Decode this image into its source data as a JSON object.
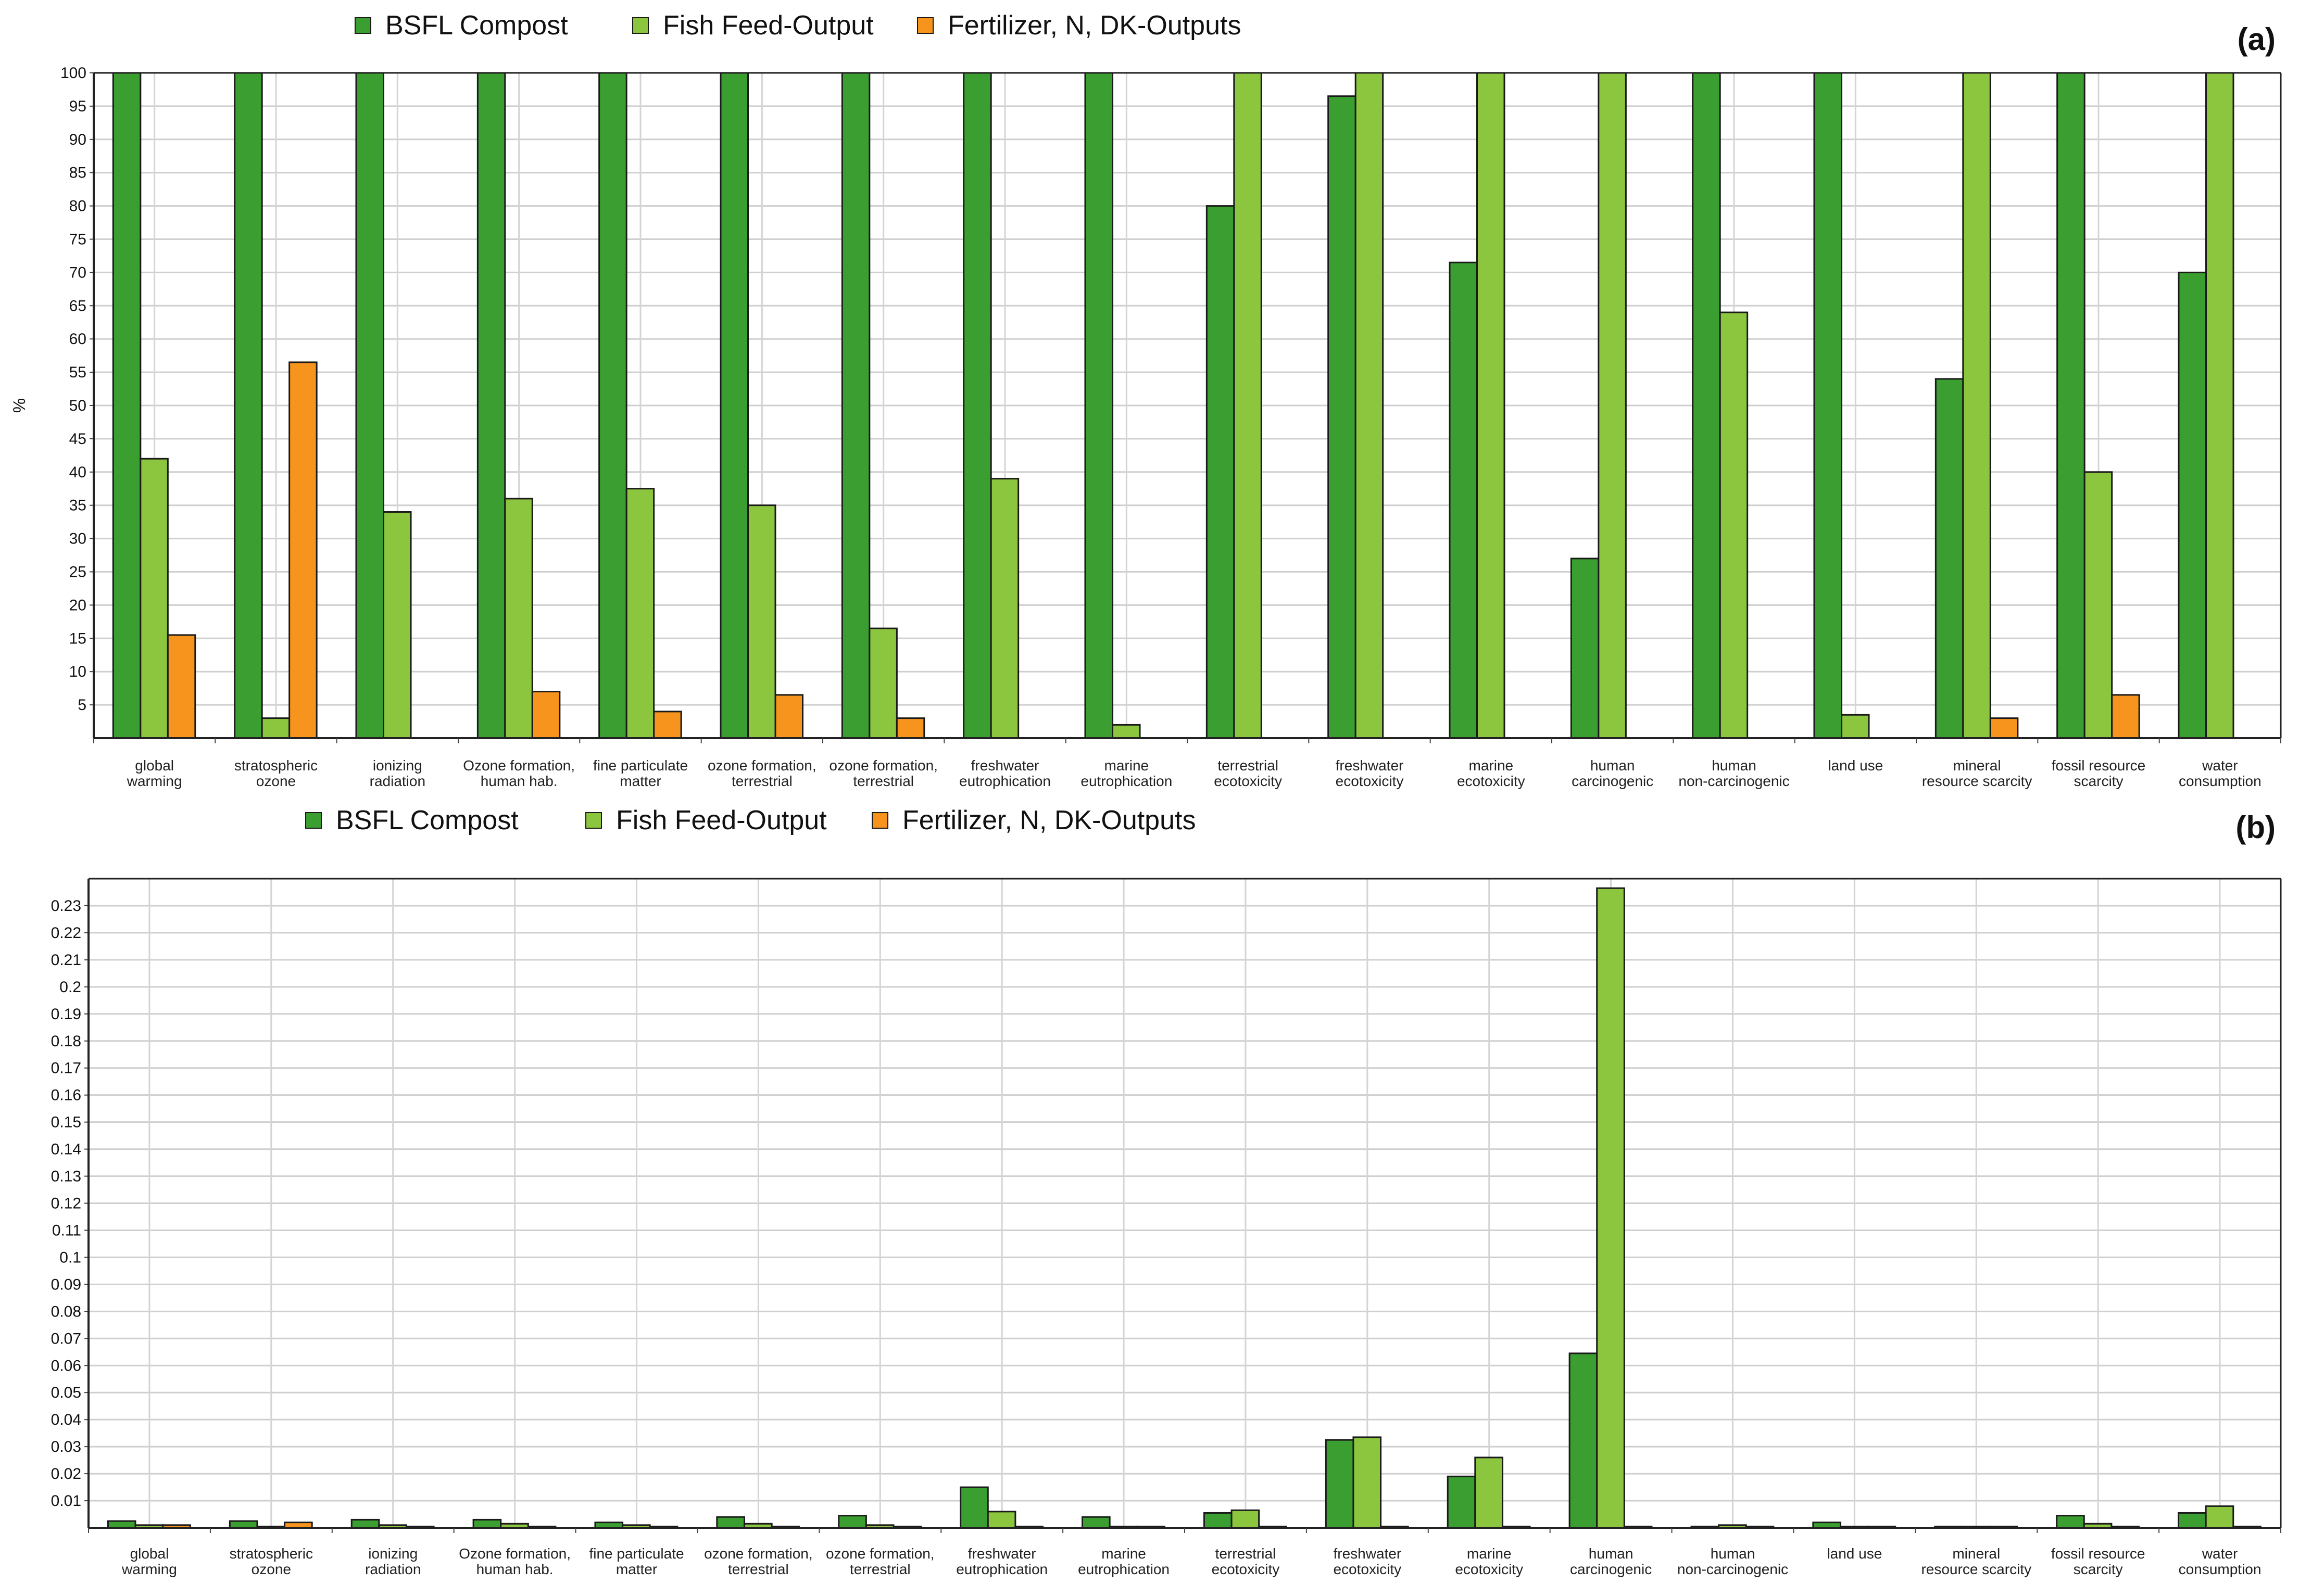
{
  "chart_data": [
    {
      "panel_label": "(a)",
      "type": "bar",
      "ylabel": "%",
      "ylim": [
        0,
        100
      ],
      "yticks": [
        "5",
        "10",
        "15",
        "20",
        "25",
        "30",
        "35",
        "40",
        "45",
        "50",
        "55",
        "60",
        "65",
        "70",
        "75",
        "80",
        "85",
        "90",
        "95",
        "100"
      ],
      "ytick_values": [
        5,
        10,
        15,
        20,
        25,
        30,
        35,
        40,
        45,
        50,
        55,
        60,
        65,
        70,
        75,
        80,
        85,
        90,
        95,
        100
      ],
      "grid": true,
      "legend_position": "top",
      "categories": [
        [
          "global",
          "warming"
        ],
        [
          "stratospheric",
          "ozone"
        ],
        [
          "ionizing",
          "radiation"
        ],
        [
          "Ozone formation,",
          "human hab."
        ],
        [
          "fine particulate",
          "matter"
        ],
        [
          "ozone formation,",
          "terrestrial"
        ],
        [
          "ozone formation,",
          "terrestrial"
        ],
        [
          "freshwater",
          "eutrophication"
        ],
        [
          "marine",
          "eutrophication"
        ],
        [
          "terrestrial",
          "ecotoxicity"
        ],
        [
          "freshwater",
          "ecotoxicity"
        ],
        [
          "marine",
          "ecotoxicity"
        ],
        [
          "human",
          "carcinogenic"
        ],
        [
          "human",
          "non-carcinogenic"
        ],
        [
          "land use"
        ],
        [
          "mineral",
          "resource scarcity"
        ],
        [
          "fossil resource",
          "scarcity"
        ],
        [
          "water",
          "consumption"
        ]
      ],
      "series": [
        {
          "name": "BSFL Compost",
          "color": "#3a9e31",
          "values": [
            100,
            100,
            100,
            100,
            100,
            100,
            100,
            100,
            100,
            80,
            96.5,
            71.5,
            27,
            100,
            100,
            54,
            100,
            70
          ]
        },
        {
          "name": "Fish Feed-Output",
          "color": "#8cc63f",
          "values": [
            42,
            3,
            34,
            36,
            37.5,
            35,
            16.5,
            39,
            2,
            100,
            100,
            100,
            100,
            64,
            3.5,
            100,
            40,
            100
          ]
        },
        {
          "name": "Fertilizer, N, DK-Outputs",
          "color": "#f7941d",
          "values": [
            15.5,
            56.5,
            0,
            7,
            4,
            6.5,
            3,
            0,
            0,
            0,
            0,
            0,
            0,
            0,
            0,
            3,
            6.5,
            0
          ]
        }
      ]
    },
    {
      "panel_label": "(b)",
      "type": "bar",
      "ylabel": "",
      "ylim": [
        0,
        0.24
      ],
      "yticks": [
        "0.01",
        "0.02",
        "0.03",
        "0.04",
        "0.05",
        "0.06",
        "0.07",
        "0.08",
        "0.09",
        "0.1",
        "0.11",
        "0.12",
        "0.13",
        "0.14",
        "0.15",
        "0.16",
        "0.17",
        "0.18",
        "0.19",
        "0.2",
        "0.21",
        "0.22",
        "0.23"
      ],
      "ytick_values": [
        0.01,
        0.02,
        0.03,
        0.04,
        0.05,
        0.06,
        0.07,
        0.08,
        0.09,
        0.1,
        0.11,
        0.12,
        0.13,
        0.14,
        0.15,
        0.16,
        0.17,
        0.18,
        0.19,
        0.2,
        0.21,
        0.22,
        0.23
      ],
      "grid": true,
      "legend_position": "top",
      "categories": [
        [
          "global",
          "warming"
        ],
        [
          "stratospheric",
          "ozone"
        ],
        [
          "ionizing",
          "radiation"
        ],
        [
          "Ozone formation,",
          "human hab."
        ],
        [
          "fine particulate",
          "matter"
        ],
        [
          "ozone formation,",
          "terrestrial"
        ],
        [
          "ozone formation,",
          "terrestrial"
        ],
        [
          "freshwater",
          "eutrophication"
        ],
        [
          "marine",
          "eutrophication"
        ],
        [
          "terrestrial",
          "ecotoxicity"
        ],
        [
          "freshwater",
          "ecotoxicity"
        ],
        [
          "marine",
          "ecotoxicity"
        ],
        [
          "human",
          "carcinogenic"
        ],
        [
          "human",
          "non-carcinogenic"
        ],
        [
          "land use"
        ],
        [
          "mineral",
          "resource scarcity"
        ],
        [
          "fossil resource",
          "scarcity"
        ],
        [
          "water",
          "consumption"
        ]
      ],
      "series": [
        {
          "name": "BSFL Compost",
          "color": "#3a9e31",
          "values": [
            0.0025,
            0.0025,
            0.003,
            0.003,
            0.002,
            0.004,
            0.0045,
            0.015,
            0.004,
            0.0055,
            0.0325,
            0.019,
            0.0645,
            0.0005,
            0.002,
            0.0005,
            0.0045,
            0.0055
          ]
        },
        {
          "name": "Fish Feed-Output",
          "color": "#8cc63f",
          "values": [
            0.001,
            0.0005,
            0.001,
            0.0015,
            0.001,
            0.0015,
            0.001,
            0.006,
            0.0005,
            0.0065,
            0.0335,
            0.026,
            0.2365,
            0.001,
            0.0005,
            0.0005,
            0.0015,
            0.008
          ]
        },
        {
          "name": "Fertilizer, N, DK-Outputs",
          "color": "#f7941d",
          "values": [
            0.001,
            0.002,
            0.0005,
            0.0005,
            0.0005,
            0.0005,
            0.0005,
            0.0005,
            0.0005,
            0.0005,
            0.0005,
            0.0005,
            0.0005,
            0.0005,
            0.0005,
            0.0005,
            0.0005,
            0.0005
          ]
        }
      ]
    }
  ]
}
